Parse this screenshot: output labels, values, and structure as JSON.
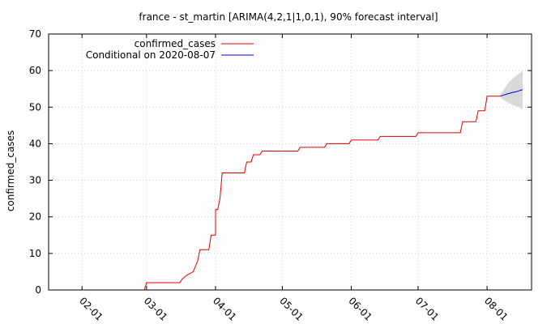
{
  "chart_data": {
    "type": "line",
    "title": "france - st_martin [ARIMA(4,2,1|1,0,1), 90% forecast interval]",
    "xlabel": "",
    "ylabel": "confirmed_cases",
    "ylim": [
      0,
      70
    ],
    "xlim": [
      "2020-01-17",
      "2020-08-21"
    ],
    "yticks": [
      0,
      10,
      20,
      30,
      40,
      50,
      60,
      70
    ],
    "xticks": [
      {
        "date": "2020-02-01",
        "label": "02-01"
      },
      {
        "date": "2020-03-01",
        "label": "03-01"
      },
      {
        "date": "2020-04-01",
        "label": "04-01"
      },
      {
        "date": "2020-05-01",
        "label": "05-01"
      },
      {
        "date": "2020-06-01",
        "label": "06-01"
      },
      {
        "date": "2020-07-01",
        "label": "07-01"
      },
      {
        "date": "2020-08-01",
        "label": "08-01"
      }
    ],
    "grid": true,
    "legend_position": "top-left",
    "series": [
      {
        "name": "confirmed_cases",
        "color": "#dd0000",
        "points": [
          [
            "2020-02-29",
            0
          ],
          [
            "2020-03-01",
            2
          ],
          [
            "2020-03-16",
            2
          ],
          [
            "2020-03-17",
            3
          ],
          [
            "2020-03-19",
            4
          ],
          [
            "2020-03-22",
            5
          ],
          [
            "2020-03-24",
            8
          ],
          [
            "2020-03-25",
            11
          ],
          [
            "2020-03-29",
            11
          ],
          [
            "2020-03-30",
            15
          ],
          [
            "2020-04-01",
            15
          ],
          [
            "2020-04-01",
            22
          ],
          [
            "2020-04-02",
            22
          ],
          [
            "2020-04-03",
            25
          ],
          [
            "2020-04-04",
            32
          ],
          [
            "2020-04-14",
            32
          ],
          [
            "2020-04-15",
            35
          ],
          [
            "2020-04-17",
            35
          ],
          [
            "2020-04-18",
            37
          ],
          [
            "2020-04-21",
            37
          ],
          [
            "2020-04-22",
            38
          ],
          [
            "2020-05-08",
            38
          ],
          [
            "2020-05-09",
            39
          ],
          [
            "2020-05-20",
            39
          ],
          [
            "2020-05-21",
            40
          ],
          [
            "2020-05-31",
            40
          ],
          [
            "2020-06-01",
            41
          ],
          [
            "2020-06-13",
            41
          ],
          [
            "2020-06-14",
            42
          ],
          [
            "2020-06-30",
            42
          ],
          [
            "2020-07-01",
            43
          ],
          [
            "2020-07-20",
            43
          ],
          [
            "2020-07-21",
            46
          ],
          [
            "2020-07-27",
            46
          ],
          [
            "2020-07-28",
            49
          ],
          [
            "2020-07-31",
            49
          ],
          [
            "2020-08-01",
            53
          ],
          [
            "2020-08-07",
            53
          ]
        ]
      },
      {
        "name": "Conditional on 2020-08-07",
        "color": "#0000dd",
        "points": [
          [
            "2020-08-07",
            53
          ],
          [
            "2020-08-10",
            53.6
          ],
          [
            "2020-08-13",
            54.1
          ],
          [
            "2020-08-14",
            54.2
          ],
          [
            "2020-08-17",
            54.8
          ]
        ],
        "interval_90": {
          "upper": [
            [
              "2020-08-07",
              53.5
            ],
            [
              "2020-08-11",
              57
            ],
            [
              "2020-08-17",
              60
            ]
          ],
          "lower": [
            [
              "2020-08-07",
              52.5
            ],
            [
              "2020-08-11",
              51
            ],
            [
              "2020-08-17",
              49.5
            ]
          ],
          "fill": "#d9d9d9"
        }
      }
    ]
  }
}
